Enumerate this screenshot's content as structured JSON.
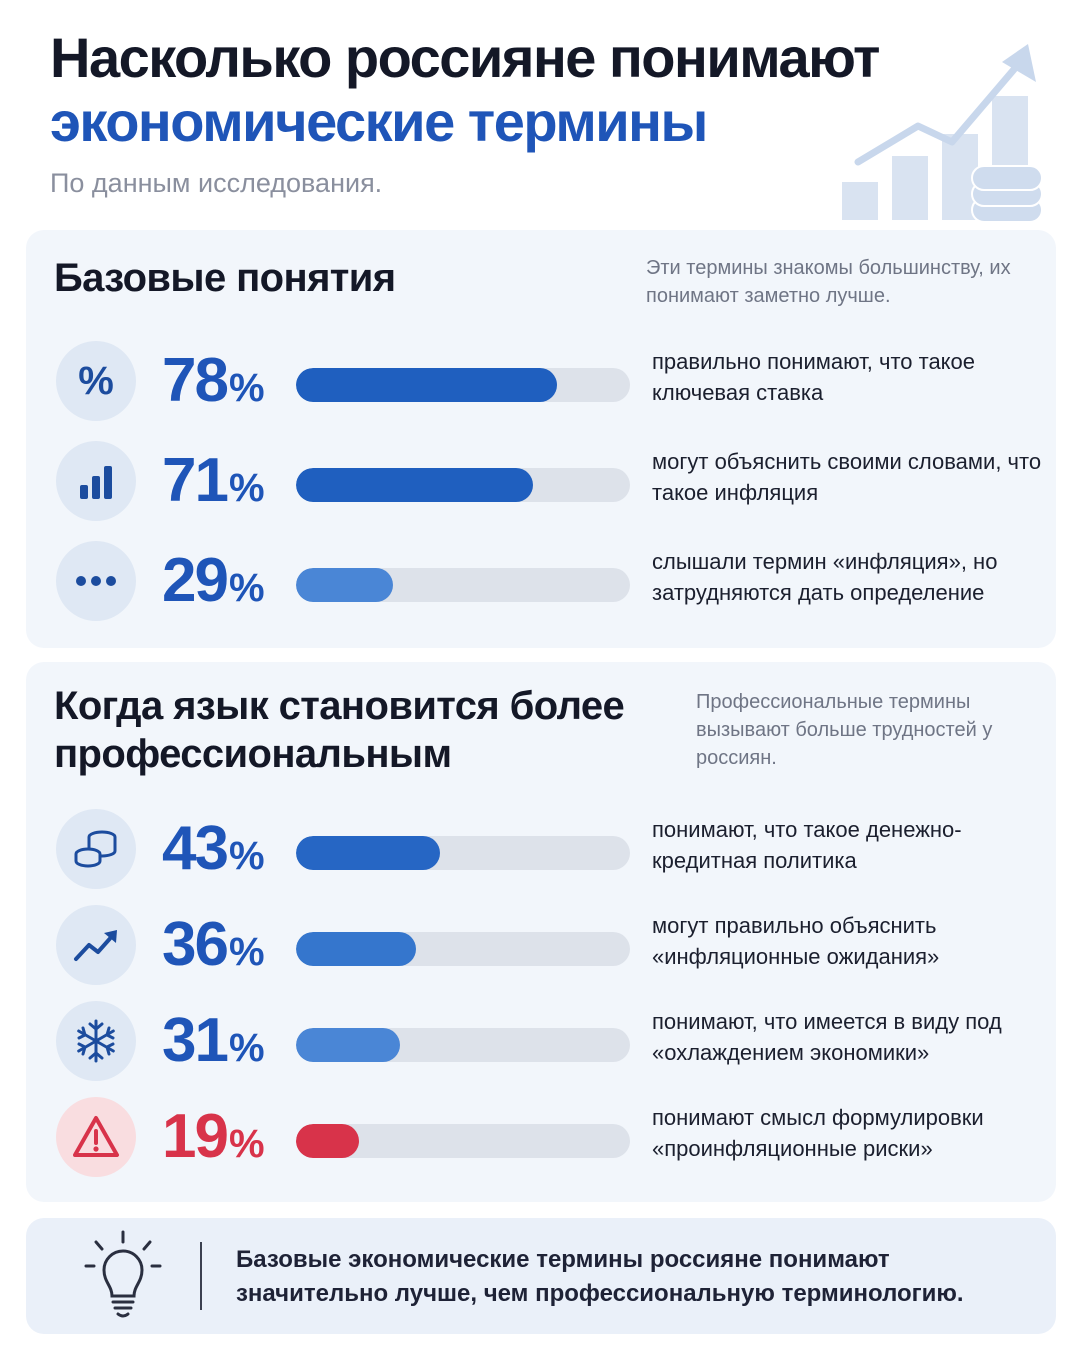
{
  "header": {
    "title_line1": "Насколько россияне понимают",
    "title_line2": "экономические термины",
    "subtitle": "По данным исследования."
  },
  "sections": [
    {
      "title": "Базовые понятия",
      "note": "Эти термины знакомы большинству, их понимают заметно лучше.",
      "rows": [
        {
          "icon": "percent-icon",
          "value": 78,
          "text": "правильно понимают, что такое ключевая ставка",
          "color": "#1f5fbf"
        },
        {
          "icon": "bar-chart-icon",
          "value": 71,
          "text": "могут объяснить своими словами, что такое инфляция",
          "color": "#1f5fbf"
        },
        {
          "icon": "ellipsis-icon",
          "value": 29,
          "text": "слышали термин «инфляция», но затрудняются дать определение",
          "color": "#4a86d6"
        }
      ]
    },
    {
      "title": "Когда язык становится более профессиональным",
      "note": "Профессиональные термины вызывают больше трудностей у россиян.",
      "rows": [
        {
          "icon": "coins-icon",
          "value": 43,
          "text": "понимают, что такое денежно-кредитная политика",
          "color": "#2666c4"
        },
        {
          "icon": "trend-up-icon",
          "value": 36,
          "text": "могут правильно объяснить «инфляционные ожидания»",
          "color": "#3576cd"
        },
        {
          "icon": "snowflake-icon",
          "value": 31,
          "text": "понимают, что имеется в виду под «охлаждением экономики»",
          "color": "#4a86d6"
        },
        {
          "icon": "warning-icon",
          "value": 19,
          "text": "понимают смысл формулировки «проинфляционные риски»",
          "color": "#d8334a"
        }
      ]
    }
  ],
  "summary": {
    "text": "Базовые экономические термины россияне понимают значительно лучше, чем профессиональную терминологию."
  },
  "chart_data": {
    "type": "bar",
    "orientation": "horizontal",
    "categories": [
      "правильно понимают, что такое ключевая ставка",
      "могут объяснить своими словами, что такое инфляция",
      "слышали термин «инфляция», но затрудняются дать определение",
      "понимают, что такое денежно-кредитная политика",
      "могут правильно объяснить «инфляционные ожидания»",
      "понимают, что имеется в виду под «охлаждением экономики»",
      "понимают смысл формулировки «проинфляционные риски»"
    ],
    "values": [
      78,
      71,
      29,
      43,
      36,
      31,
      19
    ],
    "unit": "%",
    "xlim": [
      0,
      100
    ]
  }
}
